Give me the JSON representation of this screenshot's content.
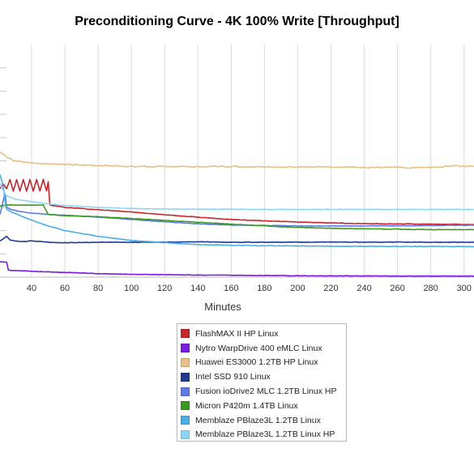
{
  "chart_data": {
    "type": "line",
    "title": "Preconditioning Curve - 4K 100% Write [Throughput]",
    "xlabel": "Minutes",
    "ylabel": "",
    "x_ticks": [
      40,
      60,
      80,
      100,
      120,
      140,
      160,
      180,
      200,
      220,
      240,
      260,
      280,
      300
    ],
    "xlim": [
      21,
      306
    ],
    "ylim": [
      0,
      100
    ],
    "y_gridlines": [
      10,
      20,
      30,
      40,
      50,
      60,
      70,
      80,
      90
    ],
    "grid": "on",
    "legend_position": "bottom-center",
    "series": [
      {
        "name": "FlashMAX II HP Linux",
        "color": "#c8242a",
        "points": [
          [
            21,
            38
          ],
          [
            23,
            40
          ],
          [
            25,
            38
          ],
          [
            27,
            42
          ],
          [
            29,
            37
          ],
          [
            31,
            42
          ],
          [
            33,
            37
          ],
          [
            35,
            42
          ],
          [
            37,
            37
          ],
          [
            39,
            42
          ],
          [
            41,
            37
          ],
          [
            43,
            42
          ],
          [
            45,
            37
          ],
          [
            47,
            42
          ],
          [
            49,
            37
          ],
          [
            50,
            41
          ],
          [
            51,
            31
          ],
          [
            60,
            30
          ],
          [
            80,
            29
          ],
          [
            100,
            28
          ],
          [
            120,
            26.8
          ],
          [
            140,
            25.8
          ],
          [
            160,
            24.8
          ],
          [
            180,
            24.2
          ],
          [
            200,
            23.7
          ],
          [
            220,
            23.3
          ],
          [
            240,
            23.0
          ],
          [
            260,
            22.9
          ],
          [
            280,
            22.8
          ],
          [
            306,
            22.6
          ]
        ]
      },
      {
        "name": "Nytro WarpDrive 400 eMLC Linux",
        "color": "#7a1be3",
        "points": [
          [
            21,
            6.5
          ],
          [
            25,
            6.5
          ],
          [
            26,
            3.0
          ],
          [
            40,
            2.5
          ],
          [
            60,
            2.0
          ],
          [
            80,
            1.5
          ],
          [
            100,
            1.2
          ],
          [
            140,
            0.9
          ],
          [
            200,
            0.6
          ],
          [
            250,
            0.5
          ],
          [
            306,
            0.4
          ]
        ]
      },
      {
        "name": "Huawei ES3000 1.2TB HP Linux",
        "color": "#e9bf86",
        "points": [
          [
            21,
            54
          ],
          [
            25,
            51.5
          ],
          [
            30,
            50
          ],
          [
            40,
            49
          ],
          [
            60,
            48.5
          ],
          [
            80,
            48
          ],
          [
            100,
            47.6
          ],
          [
            120,
            47.5
          ],
          [
            140,
            47.5
          ],
          [
            160,
            47.6
          ],
          [
            180,
            47.4
          ],
          [
            200,
            47.4
          ],
          [
            220,
            47.3
          ],
          [
            240,
            47.2
          ],
          [
            260,
            47.1
          ],
          [
            280,
            47.0
          ],
          [
            290,
            47.8
          ],
          [
            306,
            47.6
          ]
        ]
      },
      {
        "name": "Intel SSD 910 Linux",
        "color": "#1f3a93",
        "points": [
          [
            21,
            15.5
          ],
          [
            25,
            17.5
          ],
          [
            27,
            16
          ],
          [
            30,
            15.5
          ],
          [
            35,
            15.3
          ],
          [
            40,
            15.6
          ],
          [
            50,
            15.0
          ],
          [
            60,
            14.8
          ],
          [
            80,
            15.0
          ],
          [
            100,
            15.0
          ],
          [
            120,
            15.0
          ],
          [
            140,
            15.2
          ],
          [
            160,
            15.0
          ],
          [
            180,
            15.0
          ],
          [
            200,
            15.0
          ],
          [
            220,
            15.1
          ],
          [
            240,
            15.0
          ],
          [
            260,
            15.1
          ],
          [
            280,
            15.0
          ],
          [
            306,
            15.0
          ]
        ]
      },
      {
        "name": "Fusion ioDrive2 MLC 1.2TB Linux HP",
        "color": "#5b79e8",
        "points": [
          [
            21,
            27
          ],
          [
            24,
            36
          ],
          [
            25,
            30
          ],
          [
            28,
            29
          ],
          [
            35,
            28
          ],
          [
            40,
            27.5
          ],
          [
            50,
            27
          ],
          [
            60,
            26.6
          ],
          [
            80,
            25.8
          ],
          [
            100,
            24.8
          ],
          [
            120,
            23.8
          ],
          [
            140,
            22.9
          ],
          [
            160,
            22.4
          ],
          [
            180,
            22.2
          ],
          [
            200,
            22.0
          ],
          [
            220,
            22.0
          ],
          [
            240,
            22.0
          ],
          [
            260,
            22.1
          ],
          [
            280,
            22.2
          ],
          [
            306,
            22.3
          ]
        ]
      },
      {
        "name": "Micron P420m 1.4TB Linux",
        "color": "#3a9a1c",
        "points": [
          [
            21,
            30.5
          ],
          [
            25,
            31
          ],
          [
            40,
            31
          ],
          [
            47,
            31
          ],
          [
            50,
            27
          ],
          [
            60,
            26.4
          ],
          [
            80,
            26.0
          ],
          [
            100,
            25.2
          ],
          [
            120,
            24.4
          ],
          [
            140,
            23.6
          ],
          [
            160,
            22.8
          ],
          [
            180,
            22.0
          ],
          [
            200,
            21.4
          ],
          [
            220,
            21.0
          ],
          [
            240,
            20.8
          ],
          [
            260,
            20.6
          ],
          [
            280,
            20.4
          ],
          [
            306,
            20.4
          ]
        ]
      },
      {
        "name": "Memblaze PBlaze3L 1.2TB Linux",
        "color": "#46aee8",
        "points": [
          [
            21,
            44
          ],
          [
            23,
            39
          ],
          [
            24,
            33
          ],
          [
            25,
            29
          ],
          [
            28,
            28
          ],
          [
            35,
            26
          ],
          [
            40,
            24.5
          ],
          [
            50,
            22
          ],
          [
            60,
            20
          ],
          [
            80,
            17.5
          ],
          [
            100,
            15.8
          ],
          [
            120,
            14.8
          ],
          [
            140,
            14.0
          ],
          [
            160,
            13.7
          ],
          [
            180,
            13.5
          ],
          [
            200,
            13.4
          ],
          [
            220,
            13.3
          ],
          [
            240,
            13.2
          ],
          [
            260,
            13.2
          ],
          [
            280,
            13.2
          ],
          [
            306,
            13.1
          ]
        ]
      },
      {
        "name": "Memblaze PBlaze3L 1.2TB Linux HP",
        "color": "#8ed5f5",
        "points": [
          [
            21,
            40
          ],
          [
            23,
            37
          ],
          [
            25,
            35
          ],
          [
            30,
            33.5
          ],
          [
            40,
            32.5
          ],
          [
            50,
            31.5
          ],
          [
            60,
            30.8
          ],
          [
            80,
            30.0
          ],
          [
            100,
            29.5
          ],
          [
            120,
            29.3
          ],
          [
            140,
            29.2
          ],
          [
            160,
            29.2
          ],
          [
            180,
            29.1
          ],
          [
            200,
            29.1
          ],
          [
            220,
            29.1
          ],
          [
            240,
            29.1
          ],
          [
            260,
            29.1
          ],
          [
            280,
            29.1
          ],
          [
            306,
            29.1
          ]
        ]
      }
    ]
  }
}
